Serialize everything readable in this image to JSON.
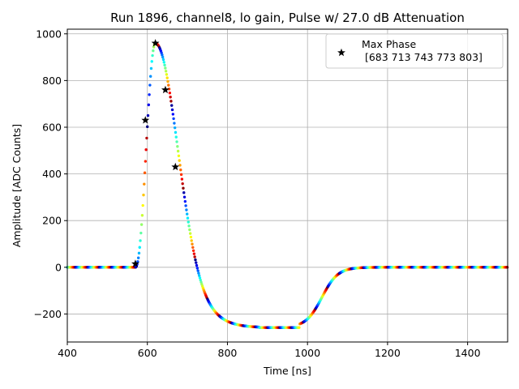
{
  "chart_data": {
    "type": "scatter",
    "title": "Run 1896, channel8, lo gain, Pulse w/ 27.0 dB Attenuation",
    "xlabel": "Time [ns]",
    "ylabel": "Amplitude [ADC Counts]",
    "xlim": [
      400,
      1500
    ],
    "ylim": [
      -320,
      1020
    ],
    "xticks": [
      400,
      600,
      800,
      1000,
      1200,
      1400
    ],
    "yticks": [
      -200,
      0,
      200,
      400,
      600,
      800,
      1000
    ],
    "grid": true,
    "colormap": "jet",
    "legend": {
      "placement": "top-right",
      "entries": [
        {
          "marker": "star",
          "label_line1": "Max Phase",
          "label_line2": " [683 713 743 773 803]"
        }
      ]
    },
    "pulse_shape": {
      "baseline": 0,
      "rise_start": 570,
      "peak_time": 620,
      "peak_amplitude": 960,
      "undershoot_min": -258,
      "undershoot_window": [
        880,
        980
      ],
      "recovery_end": 1180
    },
    "highlighted_points": {
      "x": [
        570,
        595,
        620,
        645,
        670
      ],
      "y": [
        15,
        630,
        960,
        760,
        430
      ]
    }
  },
  "colors": {
    "marker": "#000000",
    "grid": "#b0b0b0",
    "axes": "#000000"
  }
}
